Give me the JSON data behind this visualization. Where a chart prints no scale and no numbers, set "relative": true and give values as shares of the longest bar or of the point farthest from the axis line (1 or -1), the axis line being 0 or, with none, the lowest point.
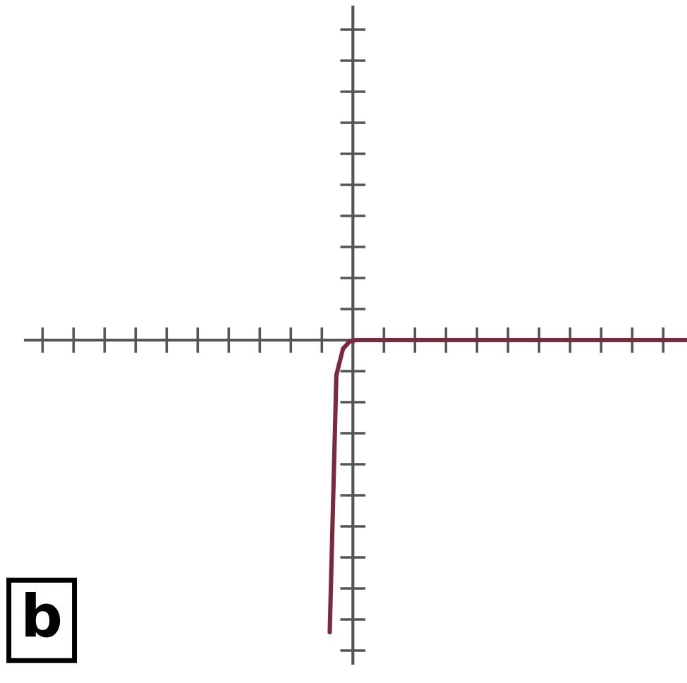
{
  "chart_data": {
    "type": "line",
    "relative": true,
    "color": "#7a2a3a",
    "line_style": "solid",
    "annotations": [
      "b"
    ],
    "categories": [
      null,
      null,
      null,
      null,
      null,
      null,
      null,
      null,
      null,
      null,
      null,
      null,
      null,
      null,
      null,
      null,
      null,
      null,
      null,
      null,
      null,
      null,
      null,
      null,
      null,
      null,
      null,
      null,
      null,
      null,
      null,
      null,
      null,
      null,
      null,
      null,
      null,
      null,
      null,
      null,
      null,
      null,
      null,
      null,
      null,
      null,
      null,
      null,
      null,
      null,
      null,
      null,
      null,
      null,
      null,
      null,
      null,
      null,
      null,
      null,
      null,
      null,
      null,
      null,
      null,
      null,
      null,
      null,
      null,
      null,
      null,
      null,
      null,
      null,
      null,
      null,
      null,
      null,
      null,
      null,
      null,
      null,
      null,
      null,
      null,
      null,
      null,
      null,
      null,
      null,
      null,
      null,
      null,
      null,
      null,
      null,
      null,
      null,
      null,
      null,
      null
    ],
    "values": [
      null,
      null,
      null,
      null,
      null,
      null,
      null,
      null,
      null,
      null,
      null,
      null,
      null,
      null,
      null,
      null,
      null,
      null,
      null,
      null,
      null,
      null,
      null,
      null,
      null,
      null,
      null,
      null,
      null,
      null,
      null,
      null,
      null,
      null,
      null,
      null,
      null,
      null,
      null,
      null,
      null,
      null,
      null,
      null,
      null,
      null,
      -1,
      -0.12,
      -0.03,
      -0.005,
      0,
      0,
      0,
      0,
      0,
      0,
      0,
      0,
      0,
      0,
      0,
      0,
      0,
      0,
      0,
      0,
      0,
      0,
      0,
      0,
      0,
      0,
      0,
      0,
      0,
      0,
      0,
      0,
      0,
      0,
      0,
      0,
      0,
      0,
      0,
      0,
      0,
      0,
      0,
      0,
      0,
      0,
      0,
      0,
      0,
      0,
      0,
      0,
      0,
      0,
      0
    ]
  }
}
